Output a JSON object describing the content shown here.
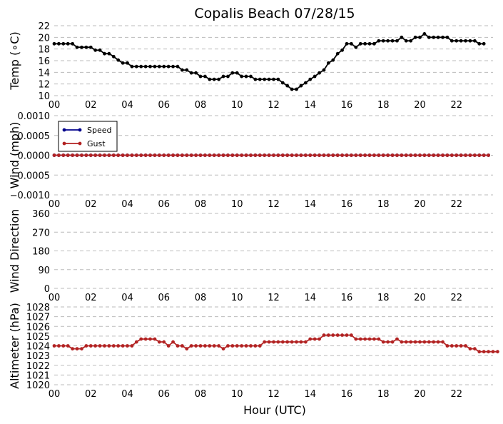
{
  "chart_data": {
    "title": "Copalis Beach 07/28/15",
    "xlabel": "Hour (UTC)",
    "x_tick_labels": [
      "00",
      "02",
      "04",
      "06",
      "08",
      "10",
      "12",
      "14",
      "16",
      "18",
      "20",
      "22"
    ],
    "grid": true,
    "colors": {
      "temp": "#000000",
      "speed": "#00008b",
      "gust": "#b22222",
      "grid": "#bbbbbb"
    },
    "panels": [
      {
        "type": "line",
        "ylabel": "Temp (∘C)",
        "ylim": [
          10,
          22
        ],
        "y_ticks": [
          10,
          12,
          14,
          16,
          18,
          20,
          22
        ],
        "y_tick_labels": [
          "10",
          "12",
          "14",
          "16",
          "18",
          "20",
          "22"
        ],
        "series": [
          {
            "key": "temp",
            "values": [
              18.9,
              18.9,
              18.9,
              18.9,
              18.9,
              18.3,
              18.3,
              18.3,
              18.3,
              17.8,
              17.8,
              17.2,
              17.2,
              16.7,
              16.1,
              15.6,
              15.6,
              15.0,
              15.0,
              15.0,
              15.0,
              15.0,
              15.0,
              15.0,
              15.0,
              15.0,
              15.0,
              15.0,
              14.4,
              14.4,
              13.9,
              13.9,
              13.3,
              13.3,
              12.8,
              12.8,
              12.8,
              13.3,
              13.3,
              13.9,
              13.9,
              13.3,
              13.3,
              13.3,
              12.8,
              12.8,
              12.8,
              12.8,
              12.8,
              12.8,
              12.2,
              11.7,
              11.1,
              11.1,
              11.7,
              12.2,
              12.8,
              13.3,
              13.9,
              14.4,
              15.6,
              16.1,
              17.2,
              17.8,
              18.9,
              18.9,
              18.3,
              18.9,
              18.9,
              18.9,
              18.9,
              19.4,
              19.4,
              19.4,
              19.4,
              19.4,
              20.0,
              19.4,
              19.4,
              20.0,
              20.0,
              20.6,
              20.0,
              20.0,
              20.0,
              20.0,
              20.0,
              19.4,
              19.4,
              19.4,
              19.4,
              19.4,
              19.4,
              18.9,
              18.9
            ]
          }
        ]
      },
      {
        "type": "line",
        "ylabel": "Wind (mph)",
        "ylim": [
          -0.001,
          0.001
        ],
        "y_ticks": [
          -0.001,
          -0.0005,
          0,
          0.0005,
          0.001
        ],
        "y_tick_labels": [
          "−0.0010",
          "−0.0005",
          "0.0000",
          "0.0005",
          "0.0010"
        ],
        "legend": {
          "position": "top-left",
          "entries": [
            "Speed",
            "Gust"
          ]
        },
        "series": [
          {
            "name": "Speed",
            "key": "speed",
            "constant": 0
          },
          {
            "name": "Gust",
            "key": "gust",
            "constant": 0
          }
        ]
      },
      {
        "type": "scatter",
        "ylabel": "Wind Direction",
        "ylim": [
          0,
          360
        ],
        "y_ticks": [
          0,
          90,
          180,
          270,
          360
        ],
        "y_tick_labels": [
          "0",
          "90",
          "180",
          "270",
          "360"
        ],
        "series": []
      },
      {
        "type": "line",
        "ylabel": "Altimeter (hPa)",
        "ylim": [
          1020,
          1028
        ],
        "y_ticks": [
          1020,
          1021,
          1022,
          1023,
          1024,
          1025,
          1026,
          1027,
          1028
        ],
        "y_tick_labels": [
          "1020",
          "1021",
          "1022",
          "1023",
          "1024",
          "1025",
          "1026",
          "1027",
          "1028"
        ],
        "series": [
          {
            "key": "gust",
            "values": [
              1024.0,
              1024.0,
              1024.0,
              1024.0,
              1023.7,
              1023.7,
              1023.7,
              1024.0,
              1024.0,
              1024.0,
              1024.0,
              1024.0,
              1024.0,
              1024.0,
              1024.0,
              1024.0,
              1024.0,
              1024.0,
              1024.4,
              1024.7,
              1024.7,
              1024.7,
              1024.7,
              1024.4,
              1024.4,
              1024.0,
              1024.4,
              1024.0,
              1024.0,
              1023.7,
              1024.0,
              1024.0,
              1024.0,
              1024.0,
              1024.0,
              1024.0,
              1024.0,
              1023.7,
              1024.0,
              1024.0,
              1024.0,
              1024.0,
              1024.0,
              1024.0,
              1024.0,
              1024.0,
              1024.4,
              1024.4,
              1024.4,
              1024.4,
              1024.4,
              1024.4,
              1024.4,
              1024.4,
              1024.4,
              1024.4,
              1024.7,
              1024.7,
              1024.7,
              1025.1,
              1025.1,
              1025.1,
              1025.1,
              1025.1,
              1025.1,
              1025.1,
              1024.7,
              1024.7,
              1024.7,
              1024.7,
              1024.7,
              1024.7,
              1024.4,
              1024.4,
              1024.4,
              1024.7,
              1024.4,
              1024.4,
              1024.4,
              1024.4,
              1024.4,
              1024.4,
              1024.4,
              1024.4,
              1024.4,
              1024.4,
              1024.0,
              1024.0,
              1024.0,
              1024.0,
              1024.0,
              1023.7,
              1023.7,
              1023.4,
              1023.4,
              1023.4,
              1023.4,
              1023.4
            ]
          }
        ]
      }
    ]
  }
}
